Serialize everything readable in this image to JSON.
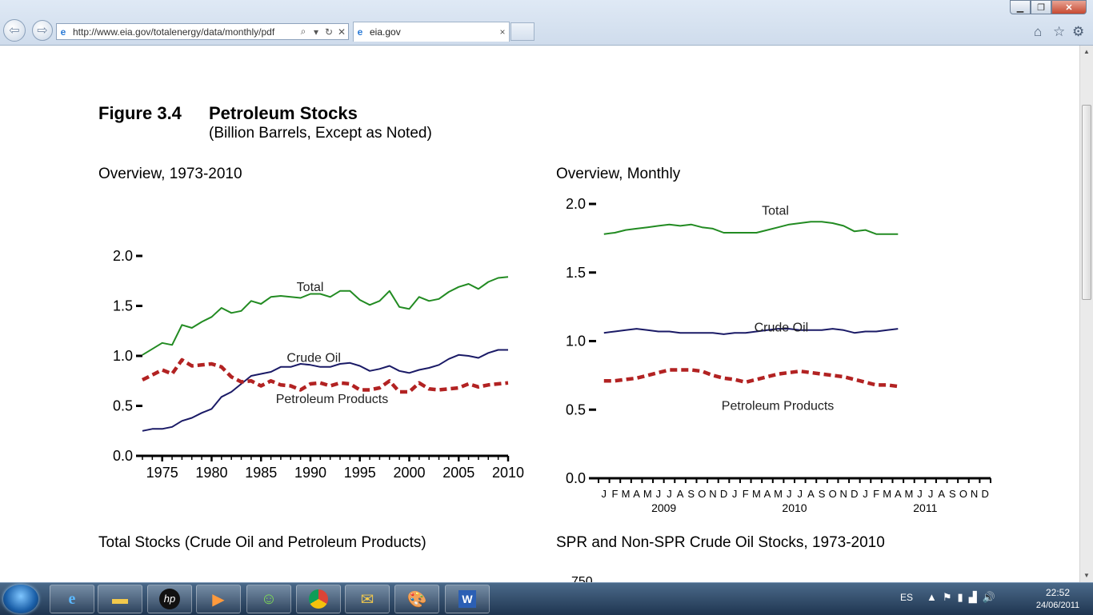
{
  "browser": {
    "url": "http://www.eia.gov/totalenergy/data/monthly/pdf",
    "tab_title": "eia.gov",
    "tab_close": "×"
  },
  "figure": {
    "number": "Figure 3.4",
    "name": "Petroleum Stocks",
    "subtitle": "(Billion Barrels, Except as Noted)"
  },
  "left_chart_title": "Overview, 1973-2010",
  "right_chart_title": "Overview, Monthly",
  "bottom_left_title": "Total Stocks (Crude Oil and Petroleum Products)",
  "bottom_right_title": "SPR and Non-SPR Crude Oil Stocks, 1973-2010",
  "bottom_right_partial_tick": "750",
  "colors": {
    "total": "#228B22",
    "crude_oil": "#1a1a66",
    "petroleum_products": "#b22222"
  },
  "tray": {
    "language": "ES",
    "time": "22:52",
    "date": "24/06/2011"
  },
  "chart_data": [
    {
      "type": "line",
      "title": "Overview, 1973-2010",
      "xlim": [
        1973,
        2010
      ],
      "ylim": [
        0,
        2.0
      ],
      "yticks": [
        "0.0",
        "0.5",
        "1.0",
        "1.5",
        "2.0"
      ],
      "xticks": [
        "1975",
        "1980",
        "1985",
        "1990",
        "1995",
        "2000",
        "2005",
        "2010"
      ],
      "x": [
        1973,
        1974,
        1975,
        1976,
        1977,
        1978,
        1979,
        1980,
        1981,
        1982,
        1983,
        1984,
        1985,
        1986,
        1987,
        1988,
        1989,
        1990,
        1991,
        1992,
        1993,
        1994,
        1995,
        1996,
        1997,
        1998,
        1999,
        2000,
        2001,
        2002,
        2003,
        2004,
        2005,
        2006,
        2007,
        2008,
        2009,
        2010
      ],
      "series": [
        {
          "name": "Total",
          "style": "solid",
          "color_key": "total",
          "values": [
            1.01,
            1.07,
            1.13,
            1.11,
            1.31,
            1.28,
            1.34,
            1.39,
            1.48,
            1.43,
            1.45,
            1.55,
            1.52,
            1.59,
            1.6,
            1.59,
            1.58,
            1.62,
            1.62,
            1.59,
            1.65,
            1.65,
            1.56,
            1.51,
            1.55,
            1.65,
            1.49,
            1.47,
            1.59,
            1.55,
            1.57,
            1.64,
            1.69,
            1.72,
            1.67,
            1.74,
            1.78,
            1.79
          ]
        },
        {
          "name": "Crude Oil",
          "style": "solid",
          "color_key": "crude_oil",
          "values": [
            0.25,
            0.27,
            0.27,
            0.29,
            0.35,
            0.38,
            0.43,
            0.47,
            0.59,
            0.64,
            0.72,
            0.8,
            0.82,
            0.84,
            0.89,
            0.89,
            0.92,
            0.91,
            0.89,
            0.89,
            0.92,
            0.93,
            0.9,
            0.85,
            0.87,
            0.9,
            0.85,
            0.83,
            0.86,
            0.88,
            0.91,
            0.97,
            1.01,
            1.0,
            0.98,
            1.03,
            1.06,
            1.06
          ]
        },
        {
          "name": "Petroleum Products",
          "style": "dashed",
          "color_key": "petroleum_products",
          "values": [
            0.76,
            0.81,
            0.86,
            0.82,
            0.96,
            0.9,
            0.91,
            0.92,
            0.89,
            0.79,
            0.74,
            0.75,
            0.7,
            0.75,
            0.71,
            0.7,
            0.66,
            0.72,
            0.73,
            0.7,
            0.73,
            0.72,
            0.66,
            0.66,
            0.68,
            0.75,
            0.64,
            0.64,
            0.73,
            0.67,
            0.66,
            0.67,
            0.68,
            0.72,
            0.69,
            0.71,
            0.72,
            0.73
          ]
        }
      ],
      "annotations": [
        "Total",
        "Crude Oil",
        "Petroleum Products"
      ],
      "grid": false
    },
    {
      "type": "line",
      "title": "Overview, Monthly",
      "ylim": [
        0,
        2.0
      ],
      "yticks": [
        "0.0",
        "0.5",
        "1.0",
        "1.5",
        "2.0"
      ],
      "month_labels": [
        "J",
        "F",
        "M",
        "A",
        "M",
        "J",
        "J",
        "A",
        "S",
        "O",
        "N",
        "D",
        "J",
        "F",
        "M",
        "A",
        "M",
        "J",
        "J",
        "A",
        "S",
        "O",
        "N",
        "D",
        "J",
        "F",
        "M",
        "A",
        "M",
        "J",
        "J",
        "A",
        "S",
        "O",
        "N",
        "D"
      ],
      "year_labels": [
        "2009",
        "2010",
        "2011"
      ],
      "series": [
        {
          "name": "Total",
          "style": "solid",
          "color_key": "total",
          "values": [
            1.78,
            1.79,
            1.81,
            1.82,
            1.83,
            1.84,
            1.85,
            1.84,
            1.85,
            1.83,
            1.82,
            1.79,
            1.79,
            1.79,
            1.79,
            1.81,
            1.83,
            1.85,
            1.86,
            1.87,
            1.87,
            1.86,
            1.84,
            1.8,
            1.81,
            1.78,
            1.78,
            1.78
          ]
        },
        {
          "name": "Crude Oil",
          "style": "solid",
          "color_key": "crude_oil",
          "values": [
            1.06,
            1.07,
            1.08,
            1.09,
            1.08,
            1.07,
            1.07,
            1.06,
            1.06,
            1.06,
            1.06,
            1.05,
            1.06,
            1.06,
            1.07,
            1.08,
            1.09,
            1.09,
            1.08,
            1.08,
            1.08,
            1.09,
            1.08,
            1.06,
            1.07,
            1.07,
            1.08,
            1.09
          ]
        },
        {
          "name": "Petroleum Products",
          "style": "dashed",
          "color_key": "petroleum_products",
          "values": [
            0.71,
            0.71,
            0.72,
            0.73,
            0.75,
            0.77,
            0.79,
            0.79,
            0.79,
            0.78,
            0.75,
            0.73,
            0.72,
            0.7,
            0.72,
            0.74,
            0.76,
            0.77,
            0.78,
            0.77,
            0.76,
            0.75,
            0.74,
            0.72,
            0.7,
            0.68,
            0.68,
            0.67
          ]
        }
      ],
      "annotations": [
        "Total",
        "Crude Oil",
        "Petroleum Products"
      ],
      "grid": false
    }
  ]
}
